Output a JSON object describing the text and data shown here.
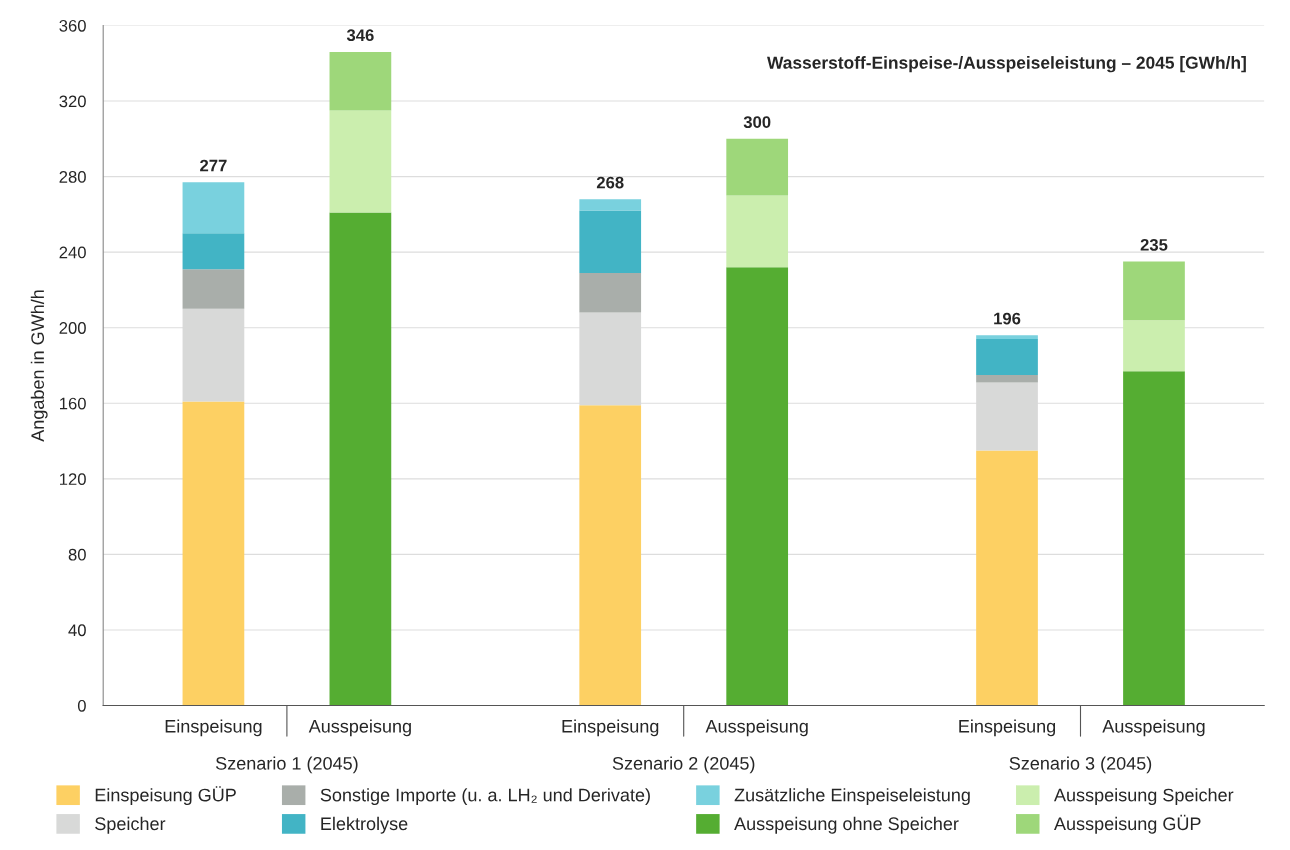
{
  "chart_data": {
    "type": "bar",
    "stacked": true,
    "title": "Wasserstoff-Einspeise-/Ausspeiseleistung – 2045 [GWh/h]",
    "ylabel": "Angaben in GWh/h",
    "categories": [
      "Einspeisung",
      "Ausspeisung",
      "Einspeisung",
      "Ausspeisung",
      "Einspeisung",
      "Ausspeisung"
    ],
    "annotations": [
      "Szenario 1 (2045)",
      "Szenario 2 (2045)",
      "Szenario 3 (2045)"
    ],
    "series": [
      {
        "name": "Einspeisung GÜP",
        "color": "#fdd063",
        "values": [
          161,
          null,
          159,
          null,
          135,
          null
        ]
      },
      {
        "name": "Speicher",
        "color": "#d8d9d8",
        "values": [
          49,
          null,
          49,
          null,
          36,
          null
        ]
      },
      {
        "name": "Sonstige Importe (u. a. LH₂ und Derivate)",
        "color": "#a9aeaa",
        "values": [
          21,
          null,
          21,
          null,
          4,
          null
        ]
      },
      {
        "name": "Elektrolyse",
        "color": "#42b4c5",
        "values": [
          19,
          null,
          33,
          null,
          19,
          null
        ]
      },
      {
        "name": "Zusätzliche Einspeiseleistung",
        "color": "#79d1de",
        "values": [
          27,
          null,
          6,
          null,
          2,
          null
        ]
      },
      {
        "name": "Ausspeisung ohne Speicher",
        "color": "#55ad32",
        "values": [
          null,
          261,
          null,
          232,
          null,
          177
        ]
      },
      {
        "name": "Ausspeisung Speicher",
        "color": "#cbeeae",
        "values": [
          null,
          54,
          null,
          38,
          null,
          27
        ]
      },
      {
        "name": "Ausspeisung GÜP",
        "color": "#9ed77a",
        "values": [
          null,
          31,
          null,
          30,
          null,
          31
        ]
      }
    ],
    "totals": [
      "277",
      "346",
      "268",
      "300",
      "196",
      "235"
    ],
    "ylim": [
      0,
      360
    ],
    "yticks": [
      0,
      40,
      80,
      120,
      160,
      200,
      240,
      280,
      320,
      360
    ],
    "grid": "y",
    "legend": "bottom"
  }
}
